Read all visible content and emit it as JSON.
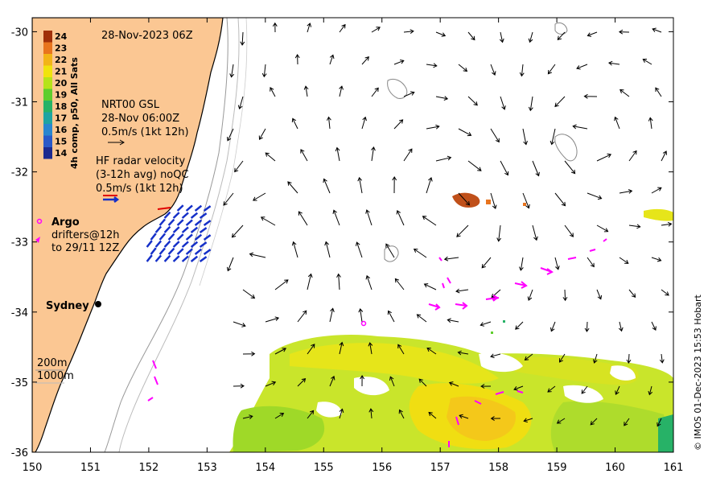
{
  "map": {
    "timestamp": "28-Nov-2023 06Z",
    "x_axis": {
      "min": 150,
      "max": 161,
      "ticks": [
        "150",
        "151",
        "152",
        "153",
        "154",
        "155",
        "156",
        "157",
        "158",
        "159",
        "160",
        "161"
      ]
    },
    "y_axis": {
      "min": -36,
      "max": -29.8,
      "ticks": [
        "-30",
        "-31",
        "-32",
        "-33",
        "-34",
        "-35",
        "-36"
      ]
    },
    "colorbar": {
      "label": "4h comp, p50, All Sats",
      "ticks": [
        "24",
        "23",
        "22",
        "21",
        "20",
        "19",
        "18",
        "17",
        "16",
        "15",
        "14"
      ],
      "colors": [
        "#a0300a",
        "#e8741e",
        "#f2b417",
        "#f0e30d",
        "#b6e31a",
        "#5fce2d",
        "#27b267",
        "#1fa4a2",
        "#2a86cf",
        "#2a59c8",
        "#1c2a8f"
      ]
    },
    "gsl": {
      "line1": "NRT00 GSL",
      "line2": "28-Nov 06:00Z",
      "line3": "0.5m/s (1kt 12h)"
    },
    "hf_radar": {
      "line1": "HF radar velocity",
      "line2": "(3-12h avg) noQC",
      "line3": "0.5m/s (1kt 12h)"
    },
    "argo": {
      "label": "Argo",
      "drifters_line1": "drifters@12h",
      "drifters_line2": "to 29/11 12Z",
      "color": "#ff00ff"
    },
    "city": {
      "name": "Sydney",
      "lon": 151.2,
      "lat": -33.87
    },
    "isobaths": [
      "200m",
      "1000m"
    ],
    "land_color": "#fbc793",
    "credit": "© IMOS 01-Dec-2023 15:53 Hobart"
  }
}
